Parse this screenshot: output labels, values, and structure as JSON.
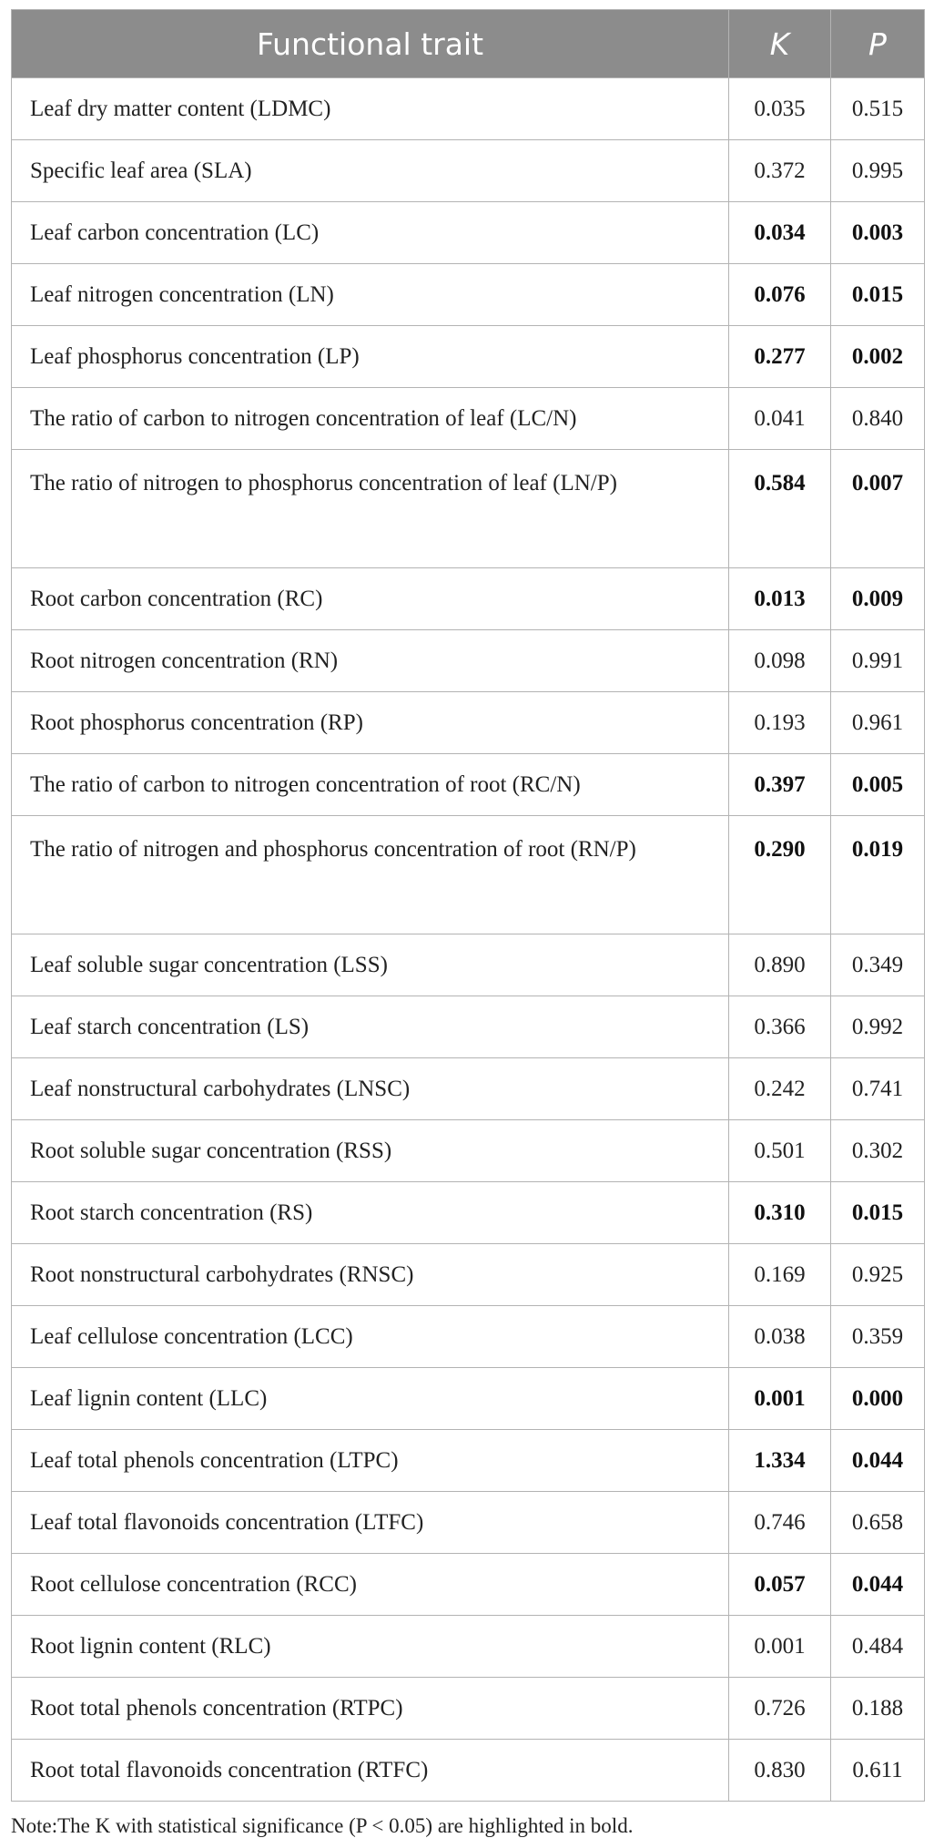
{
  "header": {
    "trait": "Functional trait",
    "k": "K",
    "p": "P"
  },
  "rows": [
    {
      "trait": "Leaf dry matter content (LDMC)",
      "k": "0.035",
      "p": "0.515",
      "bold": false
    },
    {
      "trait": "Specific leaf area (SLA)",
      "k": "0.372",
      "p": "0.995",
      "bold": false
    },
    {
      "trait": "Leaf carbon concentration (LC)",
      "k": "0.034",
      "p": "0.003",
      "bold": true
    },
    {
      "trait": "Leaf nitrogen concentration (LN)",
      "k": "0.076",
      "p": "0.015",
      "bold": true
    },
    {
      "trait": "Leaf phosphorus concentration (LP)",
      "k": "0.277",
      "p": "0.002",
      "bold": true
    },
    {
      "trait": "The ratio of carbon to nitrogen concentration of leaf (LC/N)",
      "k": "0.041",
      "p": "0.840",
      "bold": false
    },
    {
      "trait": "The ratio of nitrogen to phosphorus concentration of leaf (LN/P)",
      "k": "0.584",
      "p": "0.007",
      "bold": true
    },
    {
      "trait": "Root carbon concentration (RC)",
      "k": "0.013",
      "p": "0.009",
      "bold": true
    },
    {
      "trait": "Root nitrogen concentration (RN)",
      "k": "0.098",
      "p": "0.991",
      "bold": false
    },
    {
      "trait": "Root phosphorus concentration (RP)",
      "k": "0.193",
      "p": "0.961",
      "bold": false
    },
    {
      "trait": "The ratio of carbon to nitrogen concentration of root (RC/N)",
      "k": "0.397",
      "p": "0.005",
      "bold": true
    },
    {
      "trait": "The ratio of nitrogen and phosphorus concentration of root (RN/P)",
      "k": "0.290",
      "p": "0.019",
      "bold": true
    },
    {
      "trait": "Leaf soluble sugar concentration (LSS)",
      "k": "0.890",
      "p": "0.349",
      "bold": false
    },
    {
      "trait": "Leaf starch concentration (LS)",
      "k": "0.366",
      "p": "0.992",
      "bold": false
    },
    {
      "trait": "Leaf nonstructural carbohydrates (LNSC)",
      "k": "0.242",
      "p": "0.741",
      "bold": false
    },
    {
      "trait": "Root soluble sugar concentration (RSS)",
      "k": "0.501",
      "p": "0.302",
      "bold": false
    },
    {
      "trait": "Root starch concentration (RS)",
      "k": "0.310",
      "p": "0.015",
      "bold": true
    },
    {
      "trait": "Root nonstructural carbohydrates (RNSC)",
      "k": "0.169",
      "p": "0.925",
      "bold": false
    },
    {
      "trait": "Leaf cellulose concentration (LCC)",
      "k": "0.038",
      "p": "0.359",
      "bold": false
    },
    {
      "trait": "Leaf lignin content (LLC)",
      "k": "0.001",
      "p": "0.000",
      "bold": true
    },
    {
      "trait": "Leaf total phenols concentration (LTPC)",
      "k": "1.334",
      "p": "0.044",
      "bold": true
    },
    {
      "trait": "Leaf total flavonoids concentration (LTFC)",
      "k": "0.746",
      "p": "0.658",
      "bold": false
    },
    {
      "trait": "Root cellulose concentration (RCC)",
      "k": "0.057",
      "p": "0.044",
      "bold": true
    },
    {
      "trait": "Root lignin content (RLC)",
      "k": "0.001",
      "p": "0.484",
      "bold": false
    },
    {
      "trait": "Root total phenols concentration (RTPC)",
      "k": "0.726",
      "p": "0.188",
      "bold": false
    },
    {
      "trait": "Root total flavonoids concentration (RTFC)",
      "k": "0.830",
      "p": "0.611",
      "bold": false
    }
  ],
  "note": "Note:The K with statistical significance (P < 0.05) are highlighted in bold."
}
